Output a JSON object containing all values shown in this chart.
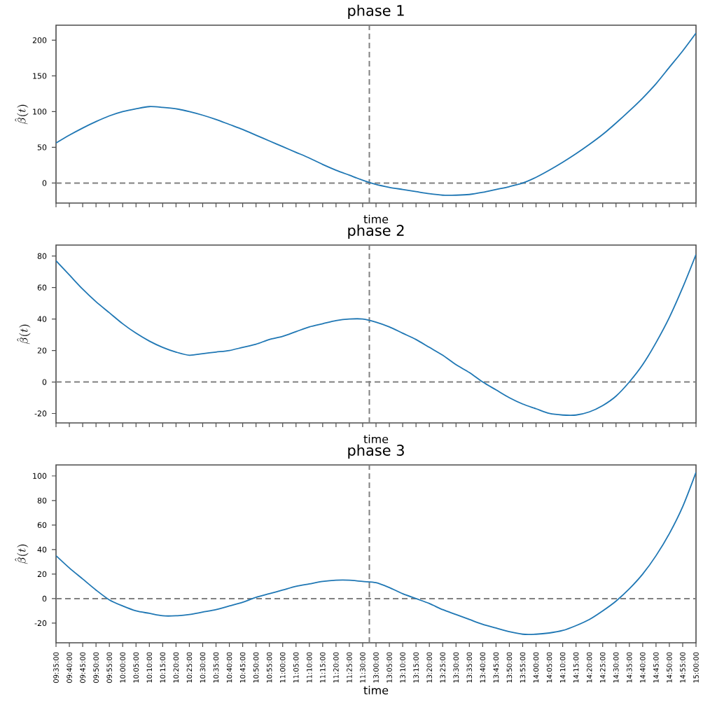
{
  "chart_data": [
    {
      "type": "line",
      "title": "phase 1",
      "xlabel": "time",
      "ylabel": "\\hat{\\beta}(t)",
      "ylim": [
        -28,
        221
      ],
      "yticks": [
        0,
        50,
        100,
        150,
        200
      ],
      "tick_labels": "y",
      "grid": false,
      "categories": [
        null,
        null,
        null,
        null,
        null,
        null,
        null,
        null,
        null,
        null,
        null,
        null,
        null,
        null,
        null,
        null,
        null,
        null,
        null,
        null,
        null,
        null,
        null,
        null,
        null,
        null,
        null,
        null,
        null,
        null,
        null,
        null,
        null,
        null,
        null,
        null,
        null,
        null,
        null,
        null,
        null,
        null,
        null,
        null,
        null,
        null,
        null,
        null,
        null
      ],
      "ref_lines": [
        {
          "axis": "y",
          "value": 0,
          "color": "#808080",
          "line_style": "dashed"
        }
      ],
      "series": [
        {
          "color": "#1f77b4",
          "values": [
            56,
            67,
            77,
            86,
            94,
            100,
            104,
            107,
            106,
            104,
            100,
            95,
            89,
            82,
            75,
            67,
            59,
            51,
            43,
            35,
            26,
            18,
            11,
            4,
            -2,
            -6,
            -9,
            -12,
            -15,
            -17,
            -17,
            -16,
            -13,
            -9,
            -5,
            0,
            8,
            18,
            29,
            41,
            54,
            68,
            84,
            101,
            119,
            139,
            162,
            185,
            210
          ]
        }
      ]
    },
    {
      "type": "line",
      "title": "phase 2",
      "xlabel": "time",
      "ylabel": "\\hat{\\beta}(t)",
      "ylim": [
        -26,
        87
      ],
      "yticks": [
        -20,
        0,
        20,
        40,
        60,
        80
      ],
      "tick_labels": "y",
      "grid": false,
      "categories": [
        null,
        null,
        null,
        null,
        null,
        null,
        null,
        null,
        null,
        null,
        null,
        null,
        null,
        null,
        null,
        null,
        null,
        null,
        null,
        null,
        null,
        null,
        null,
        null,
        null,
        null,
        null,
        null,
        null,
        null,
        null,
        null,
        null,
        null,
        null,
        null,
        null,
        null,
        null,
        null,
        null,
        null,
        null,
        null,
        null,
        null,
        null,
        null,
        null
      ],
      "ref_lines": [
        {
          "axis": "y",
          "value": 0,
          "color": "#808080",
          "line_style": "dashed"
        }
      ],
      "series": [
        {
          "color": "#1f77b4",
          "values": [
            77,
            68,
            59,
            51,
            44,
            37,
            31,
            26,
            22,
            19,
            17,
            18,
            19,
            20,
            22,
            24,
            27,
            29,
            32,
            35,
            37,
            39,
            40,
            40,
            38,
            35,
            31,
            27,
            22,
            17,
            11,
            6,
            0,
            -5,
            -10,
            -14,
            -17,
            -20,
            -21,
            -21,
            -19,
            -15,
            -9,
            0,
            11,
            25,
            41,
            60,
            81
          ]
        }
      ]
    },
    {
      "type": "line",
      "title": "phase 3",
      "xlabel": "time",
      "ylabel": "\\hat{\\beta}(t)",
      "ylim": [
        -36,
        109
      ],
      "yticks": [
        -20,
        0,
        20,
        40,
        60,
        80,
        100
      ],
      "grid": false,
      "categories": [
        "09:35:00",
        "09:40:00",
        "09:45:00",
        "09:50:00",
        "09:55:00",
        "10:00:00",
        "10:05:00",
        "10:10:00",
        "10:15:00",
        "10:20:00",
        "10:25:00",
        "10:30:00",
        "10:35:00",
        "10:40:00",
        "10:45:00",
        "10:50:00",
        "10:55:00",
        "11:00:00",
        "11:05:00",
        "11:10:00",
        "11:15:00",
        "11:20:00",
        "11:25:00",
        "11:30:00",
        "13:00:00",
        "13:05:00",
        "13:10:00",
        "13:15:00",
        "13:20:00",
        "13:25:00",
        "13:30:00",
        "13:35:00",
        "13:40:00",
        "13:45:00",
        "13:50:00",
        "13:55:00",
        "14:00:00",
        "14:05:00",
        "14:10:00",
        "14:15:00",
        "14:20:00",
        "14:25:00",
        "14:30:00",
        "14:35:00",
        "14:40:00",
        "14:45:00",
        "14:50:00",
        "14:55:00",
        "15:00:00"
      ],
      "ref_lines": [
        {
          "axis": "y",
          "value": 0,
          "color": "#808080",
          "line_style": "dashed"
        }
      ],
      "series": [
        {
          "color": "#1f77b4",
          "values": [
            35,
            25,
            16,
            7,
            -1,
            -6,
            -10,
            -12,
            -14,
            -14,
            -13,
            -11,
            -9,
            -6,
            -3,
            1,
            4,
            7,
            10,
            12,
            14,
            15,
            15,
            14,
            13,
            9,
            4,
            0,
            -4,
            -9,
            -13,
            -17,
            -21,
            -24,
            -27,
            -29,
            -29,
            -28,
            -26,
            -22,
            -17,
            -10,
            -2,
            8,
            20,
            35,
            53,
            75,
            103
          ]
        }
      ]
    }
  ]
}
